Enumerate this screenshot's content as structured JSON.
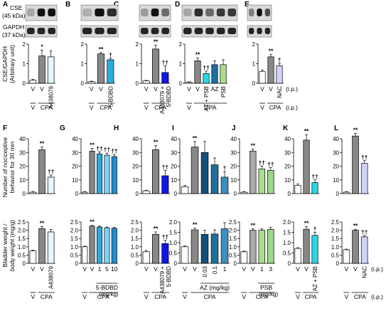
{
  "figure": {
    "blot_labels": {
      "cse": "CSE",
      "cse_kda": "(45 kDa)",
      "gapdh": "GAPDH",
      "gapdh_kda": "(37 kDa)"
    },
    "row_ylabels": {
      "cse": [
        "CSE/GAPDH",
        "(Arbitrary unit)"
      ],
      "behavior": [
        "Number of nociceptive",
        "behavior for 30 min"
      ],
      "bladder": [
        "Bladder weight /",
        "body weight (mg/g)"
      ]
    },
    "common_labels": {
      "V": "V",
      "CPA": "CPA",
      "ip": "(i.p.)"
    }
  },
  "chart_data": [
    {
      "id": "A",
      "type": "bar",
      "row": "cse",
      "ylim": [
        0,
        2
      ],
      "yticks": [
        "0",
        "1",
        "2"
      ],
      "categories": [
        "V",
        "V",
        "A438079"
      ],
      "values": [
        0.15,
        1.4,
        1.35
      ],
      "errors": [
        0.05,
        0.3,
        0.3
      ],
      "colors": [
        "#ffffff",
        "#888888",
        "#e4f7ff"
      ],
      "marks": [
        "",
        "*",
        ""
      ],
      "xlabels": [
        "V",
        "V",
        "A438079"
      ],
      "cpa_groups": [
        {
          "label": "CPA",
          "from": 1,
          "to": 2
        }
      ],
      "ip": false,
      "ip_group": ""
    },
    {
      "id": "B",
      "type": "bar",
      "row": "cse",
      "ylim": [
        0,
        2
      ],
      "yticks": [
        "0",
        "1",
        "2"
      ],
      "categories": [
        "V",
        "V",
        "5-BDBD"
      ],
      "values": [
        0.08,
        1.5,
        1.2
      ],
      "errors": [
        0.03,
        0.07,
        0.08
      ],
      "colors": [
        "#ffffff",
        "#888888",
        "#29abe2"
      ],
      "marks": [
        "",
        "**",
        "†"
      ],
      "xlabels": [
        "V",
        "V",
        "5-BDBD"
      ],
      "cpa_groups": [
        {
          "label": "CPA",
          "from": 1,
          "to": 2
        }
      ],
      "ip": false,
      "ip_group": ""
    },
    {
      "id": "C",
      "type": "bar",
      "row": "cse",
      "ylim": [
        0,
        2
      ],
      "yticks": [
        "0",
        "1",
        "2"
      ],
      "categories": [
        "V",
        "V",
        "A438079 + 5-BDBD"
      ],
      "values": [
        0.12,
        1.75,
        0.55
      ],
      "errors": [
        0.03,
        0.2,
        0.35
      ],
      "colors": [
        "#ffffff",
        "#888888",
        "#1414e6"
      ],
      "marks": [
        "",
        "**",
        "††"
      ],
      "xlabels": [
        "V",
        "V",
        "A438079 +|5-BDBD"
      ],
      "cpa_groups": [
        {
          "label": "CPA",
          "from": 1,
          "to": 2
        }
      ],
      "ip": false,
      "ip_group": ""
    },
    {
      "id": "D",
      "type": "bar",
      "row": "cse",
      "ylim": [
        0,
        2
      ],
      "yticks": [
        "0",
        "1",
        "2"
      ],
      "categories": [
        "V",
        "V",
        "AZ + PSB",
        "AZ",
        "PSB"
      ],
      "values": [
        0.05,
        1.15,
        0.5,
        0.95,
        0.95
      ],
      "errors": [
        0.02,
        0.15,
        0.12,
        0.2,
        0.25
      ],
      "colors": [
        "#ffffff",
        "#888888",
        "#29d6e6",
        "#1f6f9e",
        "#a8df8a"
      ],
      "marks": [
        "",
        "**",
        "††",
        "",
        ""
      ],
      "xlabels": [
        "V",
        "V",
        "AZ + PSB",
        "AZ",
        "PSB"
      ],
      "cpa_groups": [
        {
          "label": "CPA",
          "from": 1,
          "to": 4
        }
      ],
      "ip": false,
      "ip_group": ""
    },
    {
      "id": "E",
      "type": "bar",
      "row": "cse",
      "ylim": [
        0,
        2
      ],
      "yticks": [
        "0",
        "1",
        "2"
      ],
      "categories": [
        "V",
        "V",
        "NAC"
      ],
      "values": [
        0.6,
        1.35,
        0.9
      ],
      "errors": [
        0.08,
        0.12,
        0.12
      ],
      "colors": [
        "#ffffff",
        "#888888",
        "#d0d2f8"
      ],
      "marks": [
        "",
        "**",
        "†"
      ],
      "xlabels": [
        "V",
        "V",
        "NAC"
      ],
      "cpa_groups": [
        {
          "label": "CPA",
          "from": 1,
          "to": 2
        }
      ],
      "ip": true,
      "ip_group": "(i.p.)"
    },
    {
      "id": "F",
      "type": "bar",
      "row": "behavior",
      "ylim": [
        0,
        40
      ],
      "yticks": [
        "0",
        "10",
        "20",
        "30",
        "40"
      ],
      "categories": [
        "V",
        "V",
        "A438079"
      ],
      "values": [
        1,
        32,
        12
      ],
      "errors": [
        0.5,
        2,
        1.5
      ],
      "colors": [
        "#ffffff",
        "#888888",
        "#e4f7ff"
      ],
      "marks": [
        "",
        "**",
        "††"
      ]
    },
    {
      "id": "G",
      "type": "bar",
      "row": "behavior",
      "ylim": [
        0,
        40
      ],
      "yticks": [
        "0",
        "10",
        "20",
        "30",
        "40"
      ],
      "categories": [
        "V",
        "V",
        "1",
        "5",
        "10"
      ],
      "values": [
        1,
        31,
        29,
        28,
        27
      ],
      "errors": [
        0.5,
        2,
        1.5,
        1.5,
        1.5
      ],
      "colors": [
        "#ffffff",
        "#888888",
        "#2fa9e0",
        "#7fd3f7",
        "#1c8fd0"
      ],
      "marks": [
        "",
        "**",
        "††",
        "††",
        "††"
      ]
    },
    {
      "id": "H",
      "type": "bar",
      "row": "behavior",
      "ylim": [
        0,
        40
      ],
      "yticks": [
        "0",
        "10",
        "20",
        "30",
        "40"
      ],
      "categories": [
        "V",
        "V",
        "A438079 + 5-BDBD"
      ],
      "values": [
        2,
        32,
        13
      ],
      "errors": [
        0.5,
        3,
        4
      ],
      "colors": [
        "#ffffff",
        "#888888",
        "#1414e6"
      ],
      "marks": [
        "",
        "**",
        "††"
      ]
    },
    {
      "id": "I",
      "type": "bar",
      "row": "behavior",
      "ylim": [
        0,
        40
      ],
      "yticks": [
        "0",
        "10",
        "20",
        "30",
        "40"
      ],
      "categories": [
        "V",
        "V",
        "0.03",
        "0.1",
        "1"
      ],
      "values": [
        5,
        34,
        30,
        21,
        12
      ],
      "errors": [
        1,
        4,
        8,
        5,
        4
      ],
      "colors": [
        "#ffffff",
        "#888888",
        "#14507a",
        "#1f6f9e",
        "#3d8fbf"
      ],
      "marks": [
        "",
        "**",
        "",
        "",
        "†"
      ]
    },
    {
      "id": "J",
      "type": "bar",
      "row": "behavior",
      "ylim": [
        0,
        40
      ],
      "yticks": [
        "0",
        "10",
        "20",
        "30",
        "40"
      ],
      "categories": [
        "V",
        "V",
        "1",
        "3"
      ],
      "values": [
        1,
        31,
        18,
        17
      ],
      "errors": [
        0.5,
        1.5,
        2,
        2
      ],
      "colors": [
        "#ffffff",
        "#aaaaaa",
        "#a8df8a",
        "#9cd78a"
      ],
      "marks": [
        "",
        "**",
        "††",
        "††"
      ]
    },
    {
      "id": "K",
      "type": "bar",
      "row": "behavior",
      "ylim": [
        0,
        40
      ],
      "yticks": [
        "0",
        "10",
        "20",
        "30",
        "40"
      ],
      "categories": [
        "V",
        "V",
        "AZ + PSB"
      ],
      "values": [
        6,
        39,
        8
      ],
      "errors": [
        1,
        4,
        2
      ],
      "colors": [
        "#ffffff",
        "#888888",
        "#29d6e6"
      ],
      "marks": [
        "",
        "**",
        "††"
      ]
    },
    {
      "id": "L",
      "type": "bar",
      "row": "behavior",
      "ylim": [
        0,
        40
      ],
      "yticks": [
        "0",
        "10",
        "20",
        "30",
        "40"
      ],
      "categories": [
        "V",
        "V",
        "NAC"
      ],
      "values": [
        1,
        42,
        22
      ],
      "errors": [
        0.5,
        2,
        2
      ],
      "colors": [
        "#ffffff",
        "#888888",
        "#d0d2f8"
      ],
      "marks": [
        "",
        "**",
        "††"
      ]
    },
    {
      "id": "F2",
      "type": "bar",
      "row": "bladder",
      "ylim": [
        0,
        2.5
      ],
      "yticks": [
        "0",
        "0.5",
        "1.0",
        "1.5",
        "2.0",
        "2.5"
      ],
      "categories": [
        "V",
        "V",
        "A438079"
      ],
      "values": [
        0.75,
        2.1,
        1.9
      ],
      "errors": [
        0.04,
        0.12,
        0.15
      ],
      "colors": [
        "#ffffff",
        "#888888",
        "#e4f7ff"
      ],
      "marks": [
        "",
        "**",
        ""
      ],
      "xlabels": [
        "V",
        "V",
        "A438079"
      ],
      "cpa_groups": [
        {
          "label": "CPA",
          "from": 1,
          "to": 2
        }
      ],
      "ip": false,
      "ip_group": "",
      "dose": ""
    },
    {
      "id": "G2",
      "type": "bar",
      "row": "bladder",
      "ylim": [
        0,
        2.5
      ],
      "yticks": [
        "0",
        "0.5",
        "1.0",
        "1.5",
        "2.0",
        "2.5"
      ],
      "categories": [
        "V",
        "V",
        "1",
        "5",
        "10"
      ],
      "values": [
        1.0,
        2.25,
        2.2,
        2.15,
        2.12
      ],
      "errors": [
        0.04,
        0.05,
        0.05,
        0.05,
        0.05
      ],
      "colors": [
        "#ffffff",
        "#888888",
        "#2fa9e0",
        "#7fd3f7",
        "#1c8fd0"
      ],
      "marks": [
        "",
        "**",
        "",
        "",
        ""
      ],
      "xlabels": [
        "V",
        "V",
        "1",
        "5",
        "10"
      ],
      "cpa_groups": [
        {
          "label": "5-BDBD",
          "from": 2,
          "to": 4
        },
        {
          "label": "CPA",
          "from": 1,
          "to": 4
        }
      ],
      "ip": false,
      "ip_group": "",
      "dose": "(mg/kg)"
    },
    {
      "id": "H2",
      "type": "bar",
      "row": "bladder",
      "ylim": [
        0,
        2.5
      ],
      "yticks": [
        "0",
        "0.5",
        "1.0",
        "1.5",
        "2.0",
        "2.5"
      ],
      "categories": [
        "V",
        "V",
        "A438079 + 5-BDBD"
      ],
      "values": [
        0.7,
        1.75,
        1.2
      ],
      "errors": [
        0.08,
        0.15,
        0.2
      ],
      "colors": [
        "#ffffff",
        "#888888",
        "#1414e6"
      ],
      "marks": [
        "",
        "**",
        "††"
      ],
      "xlabels": [
        "V",
        "V",
        "A438079 +|5-BDBD"
      ],
      "cpa_groups": [
        {
          "label": "CPA",
          "from": 1,
          "to": 2
        }
      ],
      "ip": false,
      "ip_group": "",
      "dose": ""
    },
    {
      "id": "I2",
      "type": "bar",
      "row": "bladder",
      "ylim": [
        0,
        2.0
      ],
      "yticks": [
        "0",
        "0.5",
        "1.0",
        "1.5",
        "2.0"
      ],
      "categories": [
        "V",
        "V",
        "0.03",
        "0.1",
        "1"
      ],
      "values": [
        0.8,
        1.62,
        1.4,
        1.42,
        1.67
      ],
      "errors": [
        0.04,
        0.08,
        0.2,
        0.2,
        0.3
      ],
      "colors": [
        "#ffffff",
        "#888888",
        "#14507a",
        "#1f6f9e",
        "#3d8fbf"
      ],
      "marks": [
        "",
        "**",
        "",
        "",
        ""
      ],
      "xlabels": [
        "V",
        "V",
        "0.03",
        "0.1",
        "1"
      ],
      "cpa_groups": [
        {
          "label": "AZ (mg/kg)",
          "from": 2,
          "to": 4
        },
        {
          "label": "CPA",
          "from": 1,
          "to": 4
        }
      ],
      "ip": false,
      "ip_group": "",
      "dose": ""
    },
    {
      "id": "J2",
      "type": "bar",
      "row": "bladder",
      "ylim": [
        0,
        2.5
      ],
      "yticks": [
        "0",
        "0.5",
        "1.0",
        "1.5",
        "2.0",
        "2.5"
      ],
      "categories": [
        "V",
        "V",
        "1",
        "3"
      ],
      "values": [
        0.7,
        2.0,
        2.0,
        2.05
      ],
      "errors": [
        0.04,
        0.1,
        0.1,
        0.12
      ],
      "colors": [
        "#ffffff",
        "#aaaaaa",
        "#a8df8a",
        "#9cd78a"
      ],
      "marks": [
        "",
        "**",
        "",
        ""
      ],
      "xlabels": [
        "V",
        "V",
        "1",
        "3"
      ],
      "cpa_groups": [
        {
          "label": "PSB",
          "from": 2,
          "to": 3
        },
        {
          "label": "CPA",
          "from": 1,
          "to": 3
        }
      ],
      "ip": false,
      "ip_group": "",
      "dose": "(mg/kg)"
    },
    {
      "id": "K2",
      "type": "bar",
      "row": "bladder",
      "ylim": [
        0,
        2.0
      ],
      "yticks": [
        "0",
        "0.5",
        "1.0",
        "1.5",
        "2.0"
      ],
      "categories": [
        "V",
        "V",
        "AZ + PSB"
      ],
      "values": [
        0.72,
        1.65,
        1.35
      ],
      "errors": [
        0.04,
        0.12,
        0.15
      ],
      "colors": [
        "#ffffff",
        "#888888",
        "#29d6e6"
      ],
      "marks": [
        "",
        "**",
        "†"
      ],
      "xlabels": [
        "V",
        "V",
        "AZ + PSB"
      ],
      "cpa_groups": [
        {
          "label": "CPA",
          "from": 1,
          "to": 2
        }
      ],
      "ip": false,
      "ip_group": "",
      "dose": ""
    },
    {
      "id": "L2",
      "type": "bar",
      "row": "bladder",
      "ylim": [
        0,
        2.5
      ],
      "yticks": [
        "0",
        "0.5",
        "1.0",
        "1.5",
        "2.0",
        "2.5"
      ],
      "categories": [
        "V",
        "V",
        "NAC"
      ],
      "values": [
        0.82,
        2.0,
        1.6
      ],
      "errors": [
        0.04,
        0.06,
        0.08
      ],
      "colors": [
        "#ffffff",
        "#888888",
        "#d0d2f8"
      ],
      "marks": [
        "",
        "**",
        "††"
      ],
      "xlabels": [
        "V",
        "V",
        "NAC"
      ],
      "cpa_groups": [
        {
          "label": "CPA",
          "from": 1,
          "to": 2
        }
      ],
      "ip": true,
      "ip_group": "(i.p.)",
      "dose": ""
    }
  ]
}
